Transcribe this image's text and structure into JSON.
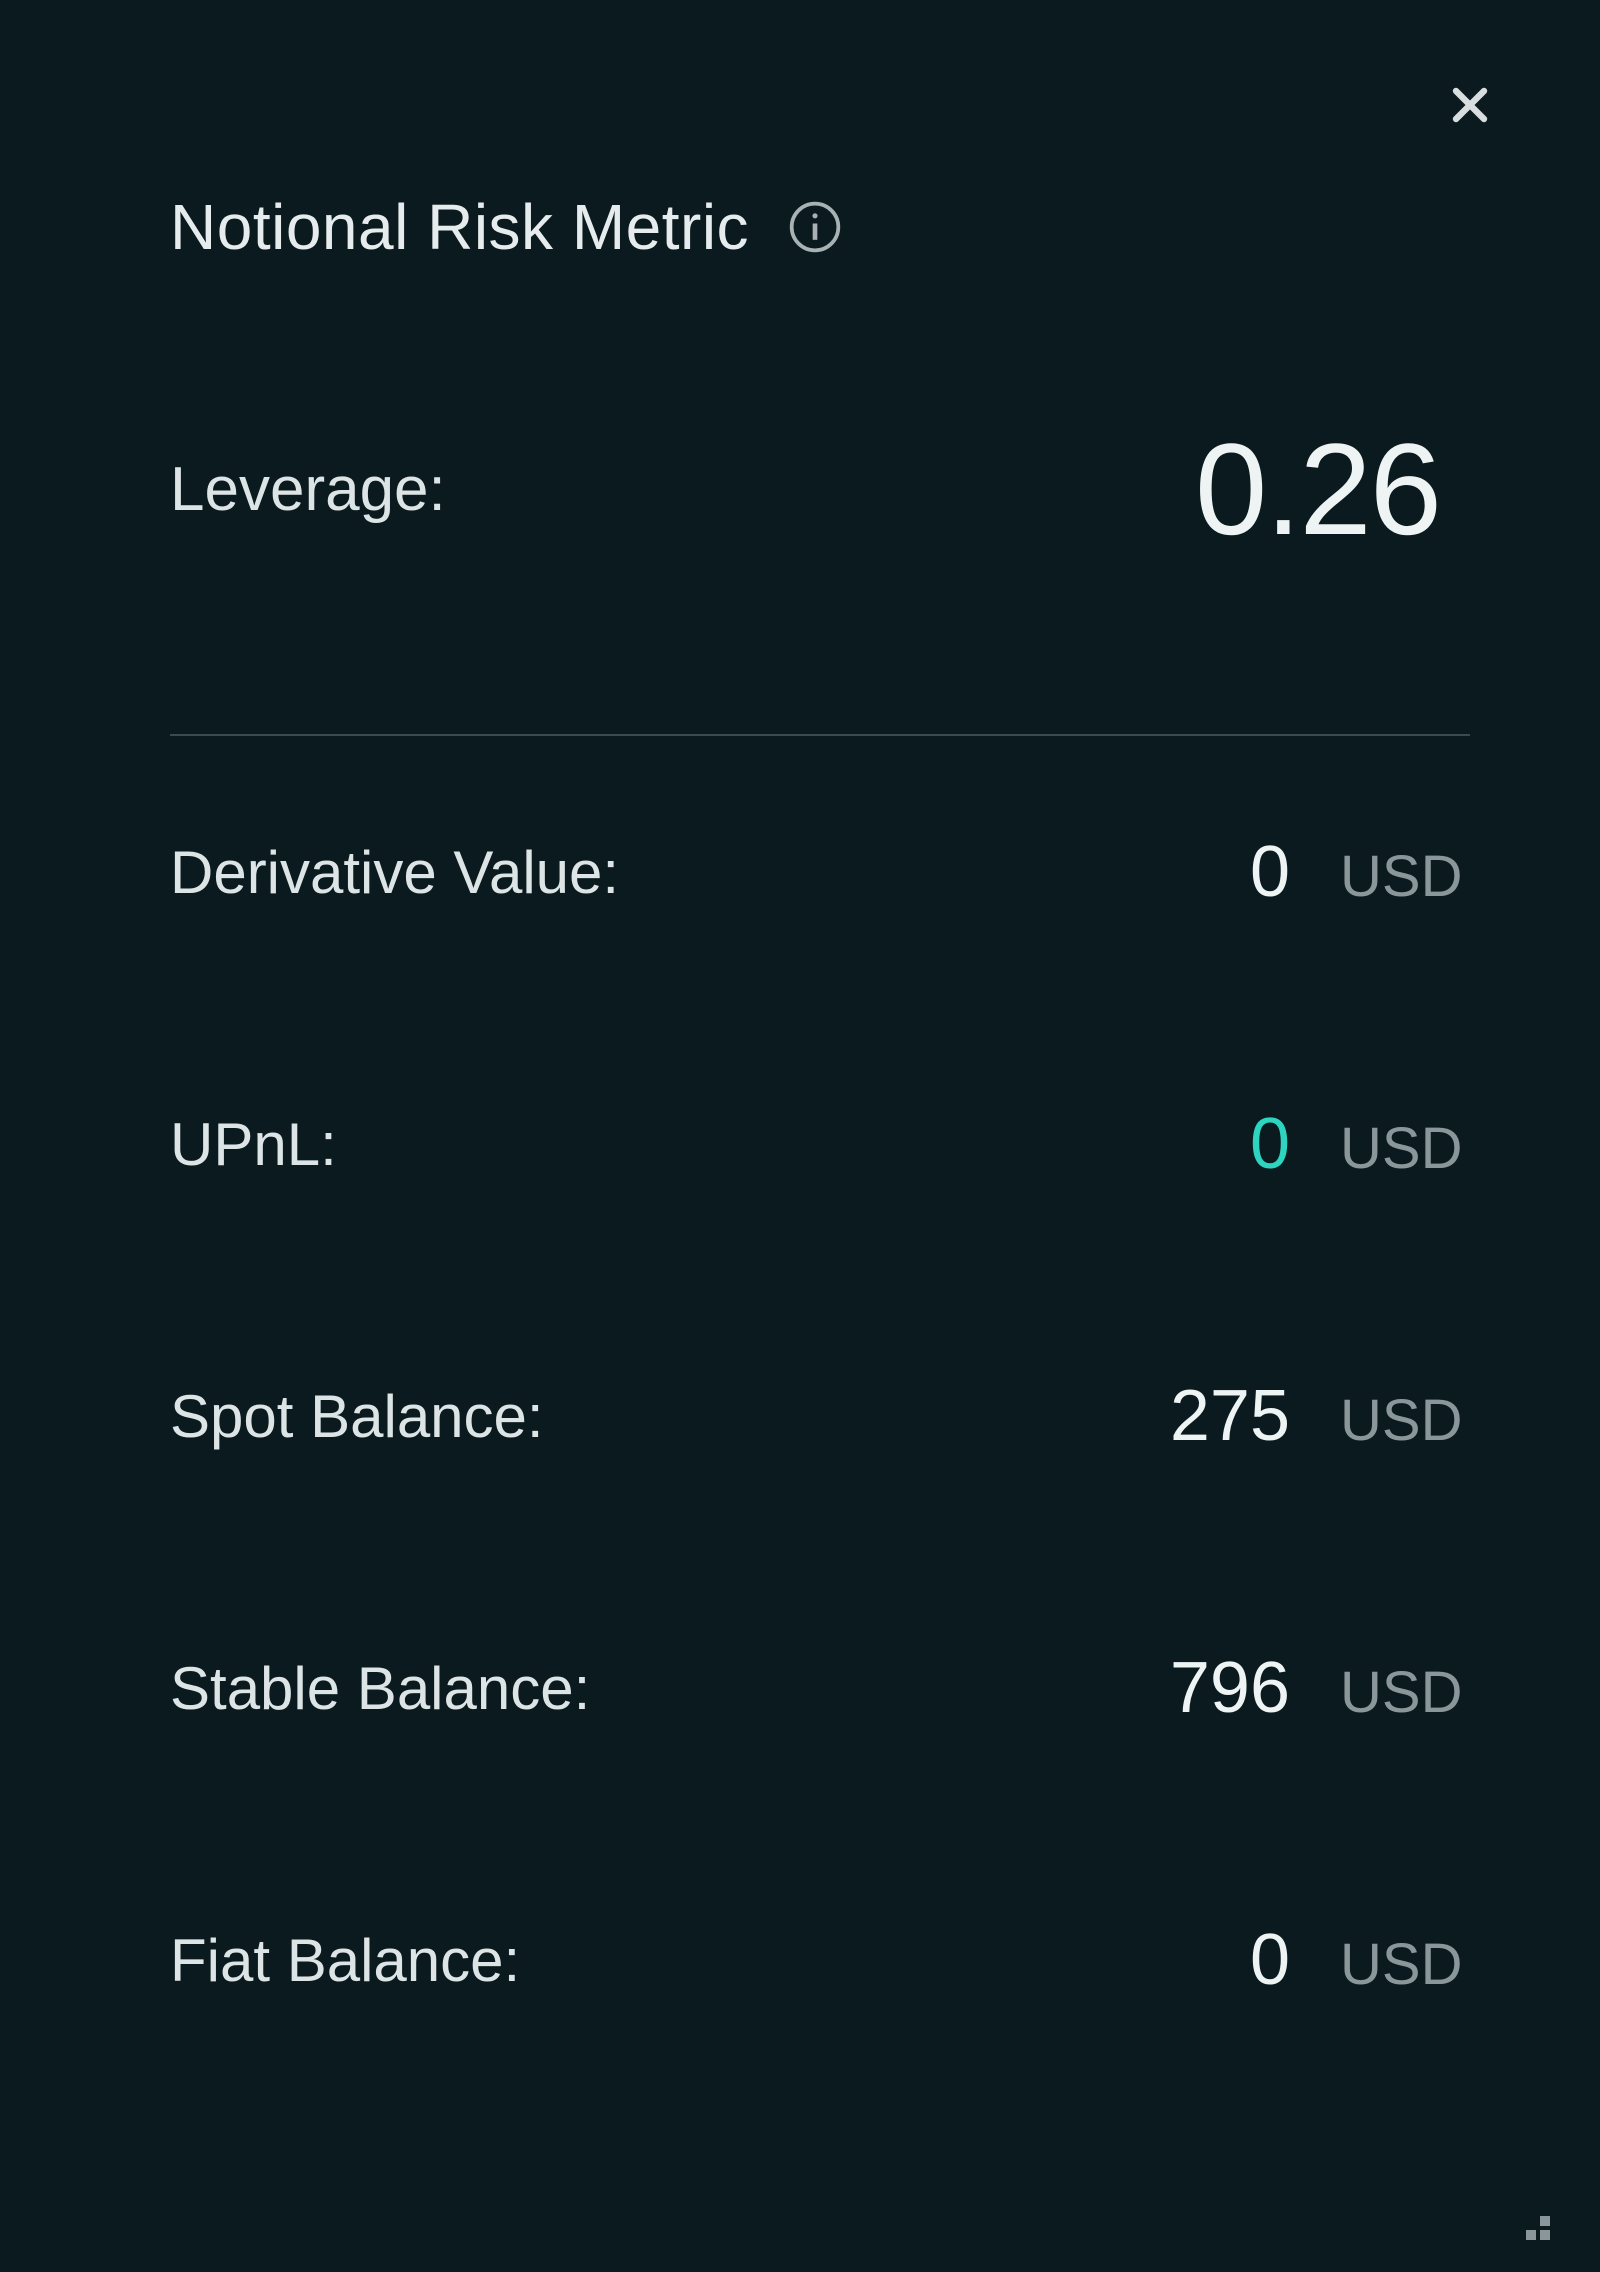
{
  "colors": {
    "background": "#0a1a1e",
    "text_primary": "#e6eced",
    "text_value": "#eef3f4",
    "text_muted": "#8a9699",
    "divider": "#3a4a4e",
    "positive": "#2dd4bf",
    "icon_stroke": "#a8b2b5"
  },
  "panel": {
    "title": "Notional Risk Metric",
    "leverage": {
      "label": "Leverage:",
      "value": "0.26"
    },
    "metrics": [
      {
        "label": "Derivative Value:",
        "value": "0",
        "unit": "USD",
        "color_class": ""
      },
      {
        "label": "UPnL:",
        "value": "0",
        "unit": "USD",
        "color_class": "positive"
      },
      {
        "label": "Spot Balance:",
        "value": "275",
        "unit": "USD",
        "color_class": ""
      },
      {
        "label": "Stable Balance:",
        "value": "796",
        "unit": "USD",
        "color_class": ""
      },
      {
        "label": "Fiat Balance:",
        "value": "0",
        "unit": "USD",
        "color_class": ""
      }
    ]
  }
}
